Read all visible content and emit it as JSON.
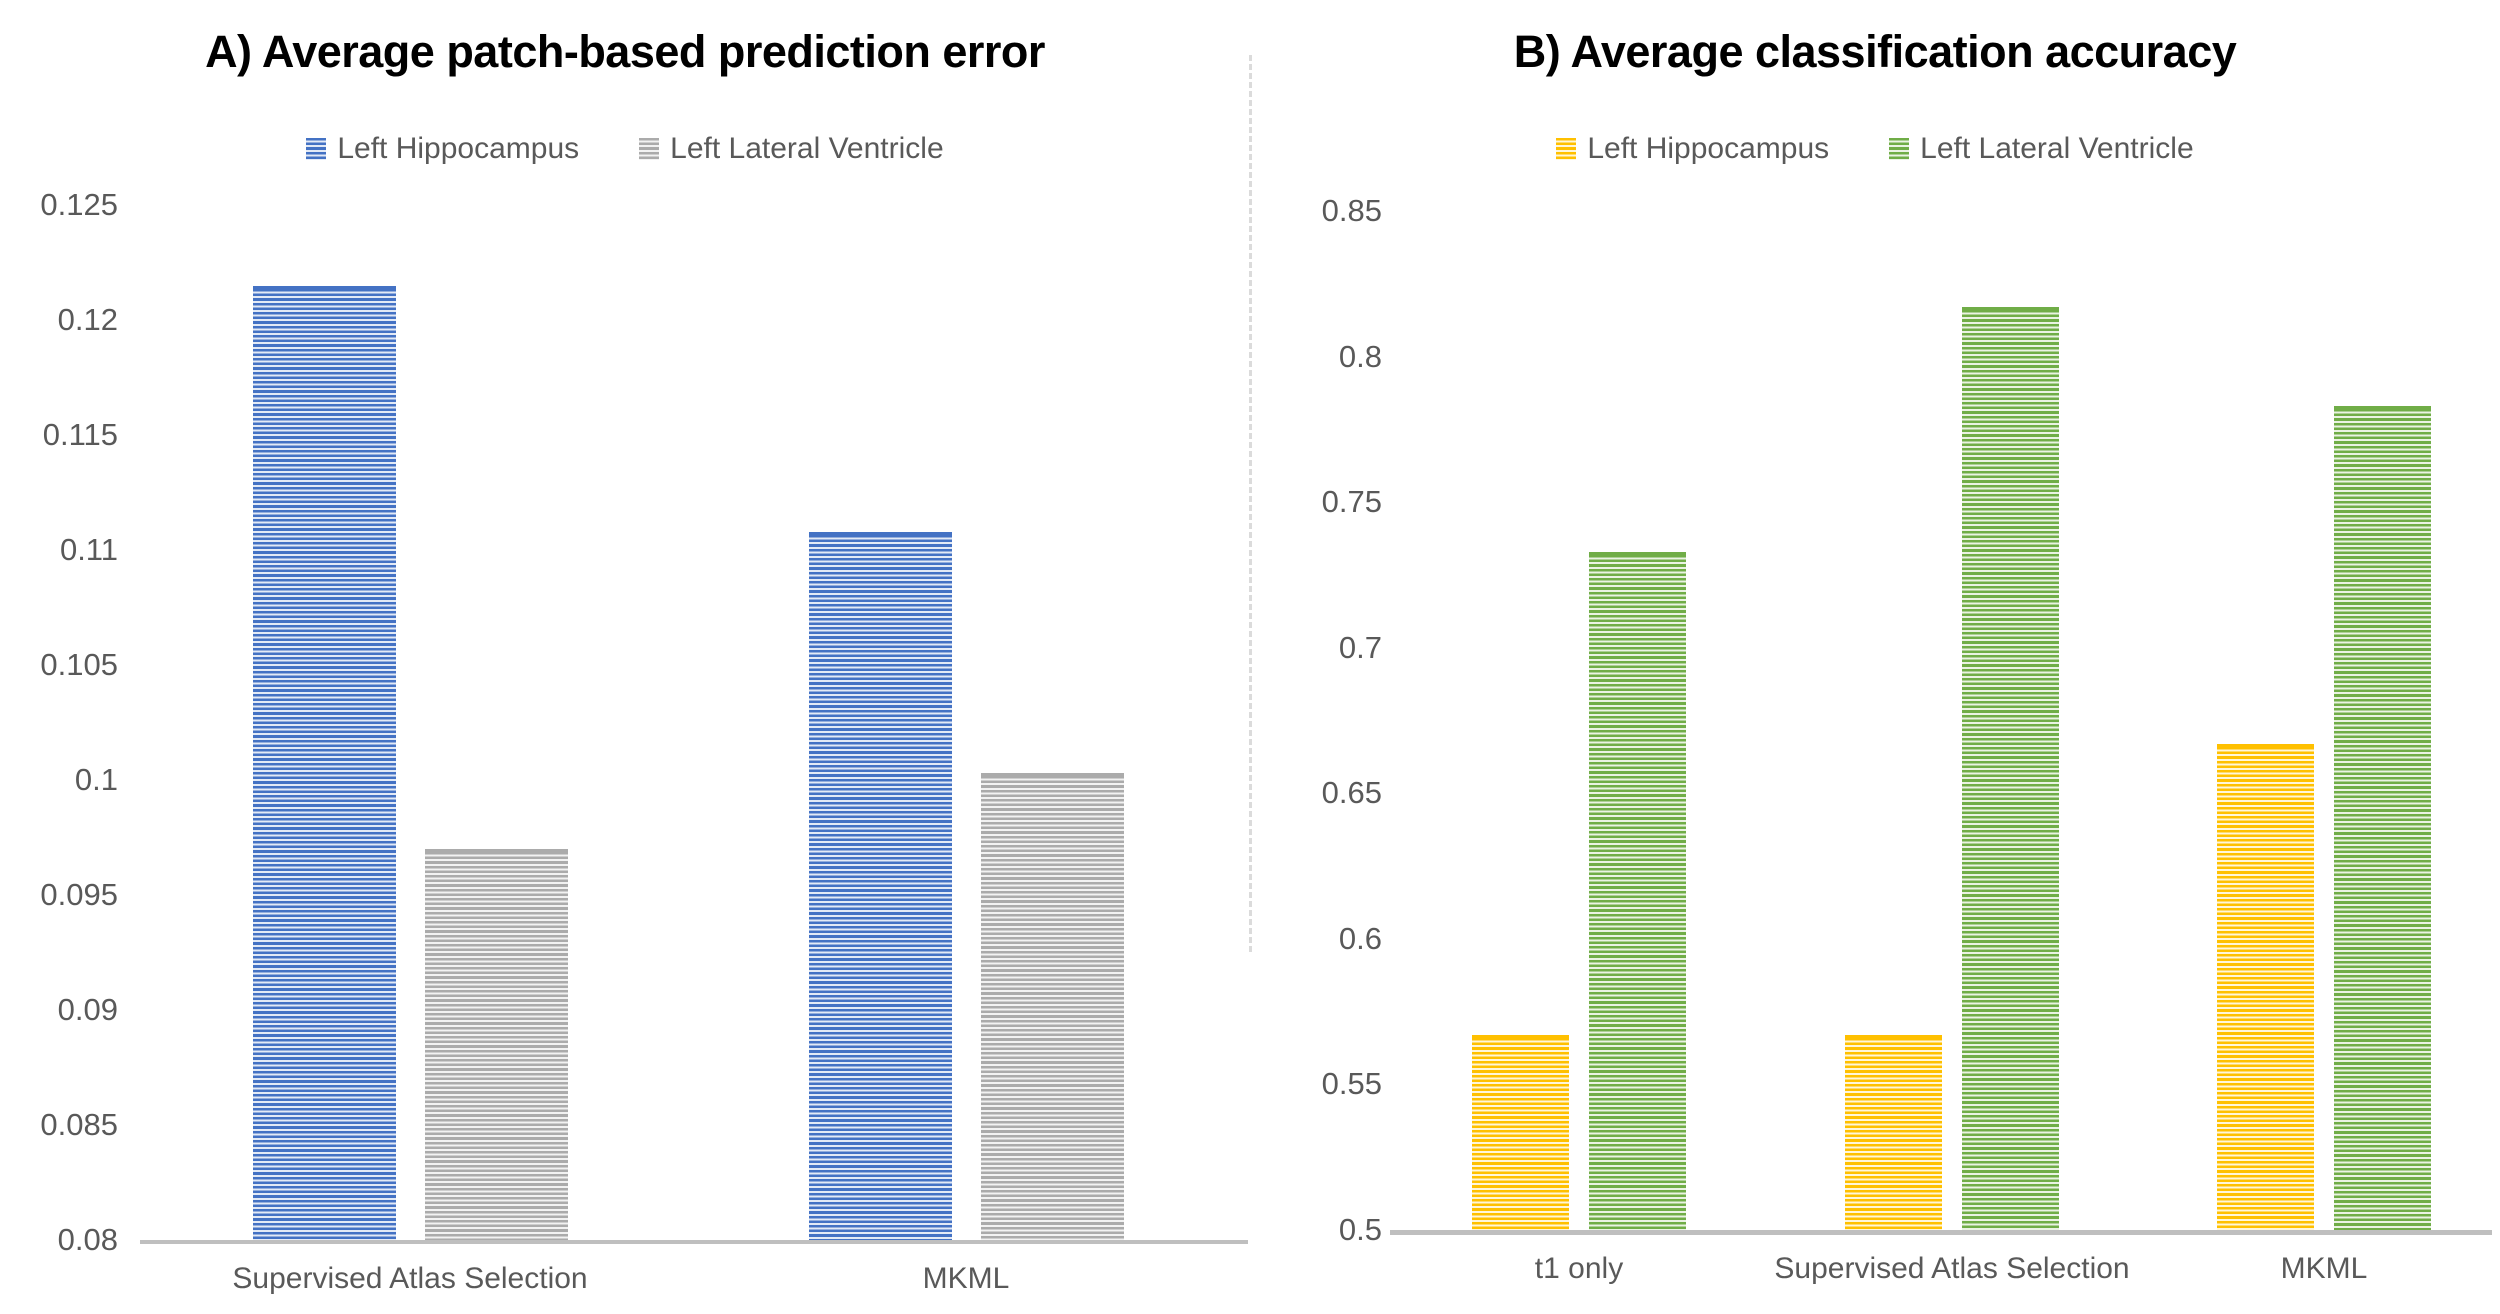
{
  "figure": {
    "background_color": "#ffffff",
    "separator_style": "vertical dashed line between panels"
  },
  "chart_data": [
    {
      "id": "prediction_error",
      "type": "bar",
      "title": "A) Average patch-based prediction error",
      "categories": [
        "Supervised Atlas Selection",
        "MKML"
      ],
      "series": [
        {
          "name": "Left Hippocampus",
          "color": "#4472C4",
          "values": [
            0.1215,
            0.1108
          ]
        },
        {
          "name": "Left Lateral Ventricle",
          "color": "#ABABAB",
          "values": [
            0.097,
            0.1003
          ]
        }
      ],
      "ylim": [
        0.08,
        0.125
      ],
      "ytick_step": 0.005,
      "yticks": [
        "0.125",
        "0.12",
        "0.115",
        "0.11",
        "0.105",
        "0.1",
        "0.095",
        "0.09",
        "0.085",
        "0.08"
      ],
      "xlabel": "",
      "ylabel": "",
      "grid": false,
      "legend_position": "top",
      "bar_texture": "horizontal-stripes"
    },
    {
      "id": "classification_accuracy",
      "type": "bar",
      "title": "B) Average classification accuracy",
      "categories": [
        "t1 only",
        "Supervised Atlas Selection",
        "MKML"
      ],
      "series": [
        {
          "name": "Left Hippocampus",
          "color": "#FFC000",
          "values": [
            0.567,
            0.567,
            0.667
          ]
        },
        {
          "name": "Left Lateral Ventricle",
          "color": "#70AD47",
          "values": [
            0.733,
            0.817,
            0.783
          ]
        }
      ],
      "ylim": [
        0.5,
        0.85
      ],
      "ytick_step": 0.05,
      "yticks": [
        "0.85",
        "0.8",
        "0.75",
        "0.7",
        "0.65",
        "0.6",
        "0.55",
        "0.5"
      ],
      "xlabel": "",
      "ylabel": "",
      "grid": false,
      "legend_position": "top",
      "bar_texture": "horizontal-stripes"
    }
  ],
  "colors": {
    "axis_line": "#bfbfbf",
    "tick_text": "#595959",
    "title_text": "#000000",
    "separator": "#dbdbdb"
  }
}
